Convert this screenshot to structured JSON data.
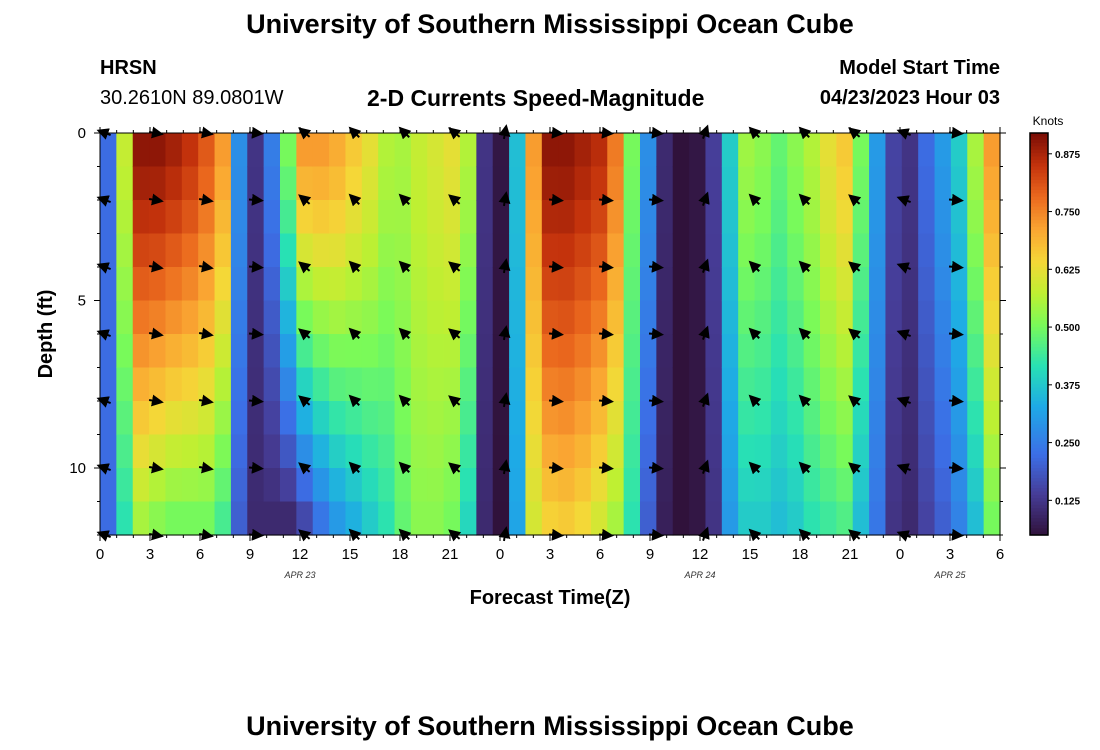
{
  "page": {
    "title_top": "University of Southern Mississippi Ocean Cube",
    "title_bottom": "University of Southern Mississippi Ocean Cube",
    "station": "HRSN",
    "location": "30.2610N  89.0801W",
    "center_title": "2-D Currents Speed-Magnitude",
    "model_label": "Model Start Time",
    "model_value": "04/23/2023 Hour 03"
  },
  "chart_data": {
    "type": "heatmap",
    "title": "2-D Currents Speed-Magnitude",
    "xlabel": "Forecast Time(Z)",
    "ylabel": "Depth (ft)",
    "x_start_hour": 0,
    "x_end_hour": 54,
    "x_ticks": [
      {
        "hour": 0,
        "label": "0"
      },
      {
        "hour": 3,
        "label": "3"
      },
      {
        "hour": 6,
        "label": "6"
      },
      {
        "hour": 9,
        "label": "9"
      },
      {
        "hour": 12,
        "label": "12"
      },
      {
        "hour": 15,
        "label": "15"
      },
      {
        "hour": 18,
        "label": "18"
      },
      {
        "hour": 21,
        "label": "21"
      },
      {
        "hour": 24,
        "label": "0"
      },
      {
        "hour": 27,
        "label": "3"
      },
      {
        "hour": 30,
        "label": "6"
      },
      {
        "hour": 33,
        "label": "9"
      },
      {
        "hour": 36,
        "label": "12"
      },
      {
        "hour": 39,
        "label": "15"
      },
      {
        "hour": 42,
        "label": "18"
      },
      {
        "hour": 45,
        "label": "21"
      },
      {
        "hour": 48,
        "label": "0"
      },
      {
        "hour": 51,
        "label": "3"
      },
      {
        "hour": 54,
        "label": "6"
      }
    ],
    "date_labels": [
      {
        "hour": 12,
        "label": "APR 23"
      },
      {
        "hour": 36,
        "label": "APR 24"
      },
      {
        "hour": 51,
        "label": "APR 25"
      }
    ],
    "ylim": [
      0,
      12
    ],
    "y_ticks": [
      {
        "value": 0,
        "label": "0"
      },
      {
        "value": 5,
        "label": "5"
      },
      {
        "value": 10,
        "label": "10"
      }
    ],
    "colorbar": {
      "label": "Knots",
      "min": 0.05,
      "max": 0.92,
      "ticks": [
        {
          "value": 0.125,
          "label": "0.125"
        },
        {
          "value": 0.25,
          "label": "0.250"
        },
        {
          "value": 0.375,
          "label": "0.375"
        },
        {
          "value": 0.5,
          "label": "0.500"
        },
        {
          "value": 0.625,
          "label": "0.625"
        },
        {
          "value": 0.75,
          "label": "0.750"
        },
        {
          "value": 0.875,
          "label": "0.875"
        }
      ]
    },
    "surface_speed_by_hour": [
      0.22,
      0.58,
      0.9,
      0.9,
      0.88,
      0.85,
      0.8,
      0.72,
      0.28,
      0.12,
      0.25,
      0.5,
      0.72,
      0.72,
      0.7,
      0.66,
      0.62,
      0.56,
      0.55,
      0.58,
      0.6,
      0.62,
      0.56,
      0.12,
      0.06,
      0.36,
      0.72,
      0.9,
      0.9,
      0.88,
      0.86,
      0.76,
      0.5,
      0.28,
      0.1,
      0.05,
      0.06,
      0.14,
      0.38,
      0.54,
      0.52,
      0.48,
      0.52,
      0.56,
      0.62,
      0.66,
      0.5,
      0.3,
      0.15,
      0.12,
      0.22,
      0.3,
      0.38,
      0.55,
      0.72
    ],
    "bottom_speed_by_hour": [
      0.22,
      0.42,
      0.55,
      0.52,
      0.5,
      0.5,
      0.5,
      0.45,
      0.2,
      0.1,
      0.1,
      0.1,
      0.16,
      0.24,
      0.3,
      0.34,
      0.38,
      0.42,
      0.48,
      0.52,
      0.52,
      0.5,
      0.4,
      0.1,
      0.05,
      0.32,
      0.6,
      0.65,
      0.66,
      0.64,
      0.6,
      0.55,
      0.42,
      0.2,
      0.08,
      0.05,
      0.06,
      0.12,
      0.3,
      0.38,
      0.38,
      0.36,
      0.38,
      0.42,
      0.44,
      0.46,
      0.36,
      0.24,
      0.12,
      0.1,
      0.15,
      0.2,
      0.26,
      0.36,
      0.5
    ],
    "vector_hours": [
      0,
      3,
      6,
      9,
      12,
      15,
      18,
      21,
      24,
      27,
      30,
      33,
      36,
      39,
      42,
      45,
      48,
      51
    ],
    "vector_depths": [
      0,
      2,
      4,
      6,
      8,
      10,
      12
    ],
    "vector_directions_deg": [
      200,
      10,
      10,
      5,
      220,
      225,
      225,
      220,
      280,
      5,
      5,
      5,
      290,
      225,
      225,
      220,
      200,
      5
    ]
  }
}
